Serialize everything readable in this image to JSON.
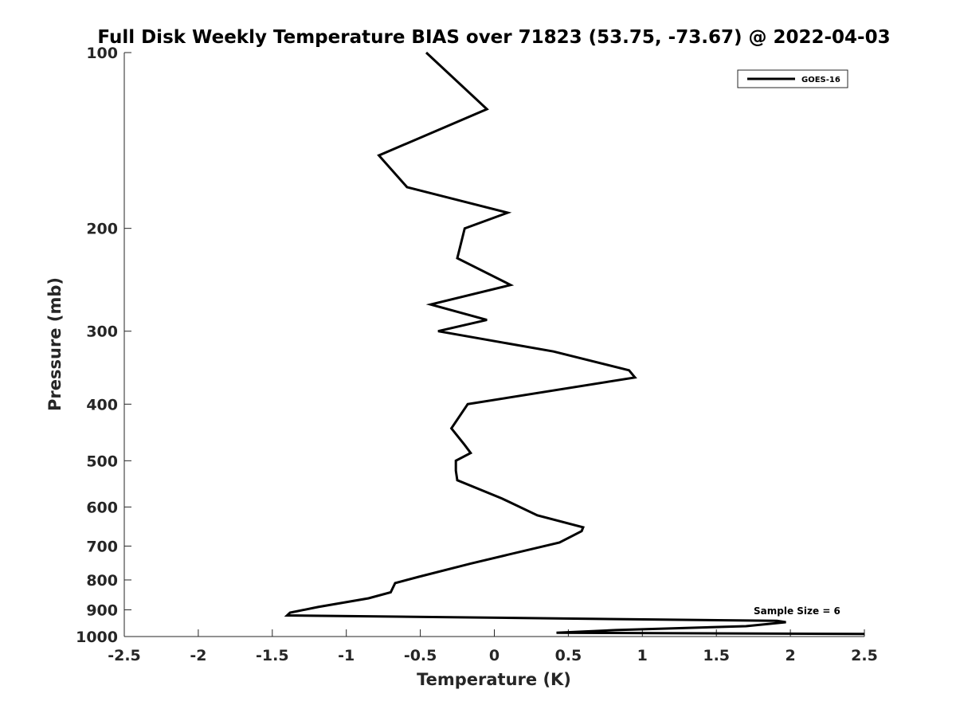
{
  "chart_data": {
    "type": "line",
    "title": "Full Disk Weekly Temperature BIAS over 71823 (53.75, -73.67) @ 2022-04-03",
    "xlabel": "Temperature (K)",
    "ylabel": "Pressure (mb)",
    "xlim": [
      -2.5,
      2.5
    ],
    "ylim": [
      100,
      1000
    ],
    "y_scale": "log",
    "y_reversed": true,
    "grid": false,
    "x_ticks": [
      -2.5,
      -2,
      -1.5,
      -1,
      -0.5,
      0,
      0.5,
      1,
      1.5,
      2,
      2.5
    ],
    "x_tick_labels": [
      "-2.5",
      "-2",
      "-1.5",
      "-1",
      "-0.5",
      "0",
      "0.5",
      "1",
      "1.5",
      "2",
      "2.5"
    ],
    "y_ticks": [
      100,
      200,
      300,
      400,
      500,
      600,
      700,
      800,
      900,
      1000
    ],
    "y_tick_labels": [
      "100",
      "200",
      "300",
      "400",
      "500",
      "600",
      "700",
      "800",
      "900",
      "1000"
    ],
    "legend": {
      "position": "top-right",
      "entries": [
        "GOES-16"
      ]
    },
    "annotation": "Sample Size = 6",
    "series": [
      {
        "name": "GOES-16",
        "color": "#000000",
        "x": [
          -0.46,
          -0.05,
          -0.78,
          -0.59,
          0.09,
          -0.2,
          -0.25,
          0.11,
          -0.43,
          -0.05,
          -0.38,
          0.4,
          0.91,
          0.95,
          -0.18,
          -0.29,
          -0.2,
          -0.16,
          -0.26,
          -0.26,
          -0.25,
          0.05,
          0.29,
          0.6,
          0.59,
          0.44,
          -0.16,
          -0.51,
          -0.67,
          -0.7,
          -0.85,
          -1.19,
          -1.38,
          -1.4,
          1.91,
          1.97,
          1.7,
          0.82,
          0.42,
          2.5
        ],
        "y": [
          100,
          125,
          150,
          170,
          188,
          200,
          225,
          250,
          270,
          287,
          300,
          325,
          350,
          360,
          400,
          440,
          470,
          485,
          500,
          520,
          540,
          580,
          620,
          650,
          660,
          690,
          750,
          790,
          810,
          840,
          860,
          890,
          910,
          920,
          940,
          945,
          960,
          975,
          985,
          990
        ]
      }
    ]
  }
}
